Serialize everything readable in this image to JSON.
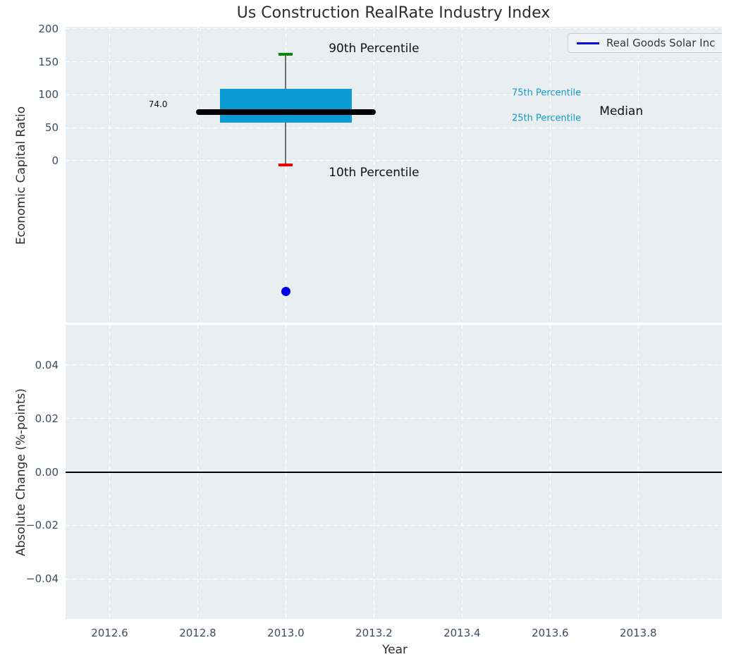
{
  "figure": {
    "title": "Us Construction RealRate Industry Index",
    "background_color": "#ffffff",
    "axes_background_color": "#e9eef0",
    "grid_color": "#ffffff",
    "tick_label_color": "#3c4c63",
    "legend": {
      "label": "Real Goods Solar Inc",
      "line_color": "#0000dd",
      "position": "upper right"
    }
  },
  "chart_data": [
    {
      "type": "boxplot",
      "title": "Us Construction RealRate Industry Index",
      "ylabel": "Economic Capital Ratio",
      "xlabel": "",
      "xlim": [
        2012.5,
        2013.99
      ],
      "ylim": [
        -246,
        203
      ],
      "xticks": [
        2012.6,
        2012.8,
        2013.0,
        2013.2,
        2013.4,
        2013.6,
        2013.8
      ],
      "xticklabels": [
        "2012.6",
        "2012.8",
        "2013.0",
        "2013.2",
        "2013.4",
        "2013.6",
        "2013.8"
      ],
      "yticks": [
        0,
        50,
        100,
        150,
        200
      ],
      "yticklabels": [
        "0",
        "50",
        "100",
        "150",
        "200"
      ],
      "grid": true,
      "box": {
        "x": 2013.0,
        "p10": -7,
        "p25": 57.5,
        "median": 74.0,
        "p75": 108.5,
        "p90": 161,
        "box_half_width": 0.15,
        "median_half_width": 0.204,
        "cap_half_width": 0.016,
        "box_color": "#0a9cd2",
        "median_color": "#000000",
        "p90_cap_color": "#078a07",
        "p10_cap_color": "#ee0000"
      },
      "company_point": {
        "name": "Real Goods Solar Inc",
        "x": 2013.0,
        "y": -198,
        "color": "#0000e6"
      },
      "annotations": [
        {
          "text": "90th Percentile",
          "x": 2013.2,
          "y": 170,
          "color": "#111111",
          "size": 17,
          "align": "center"
        },
        {
          "text": "10th Percentile",
          "x": 2013.2,
          "y": -18,
          "color": "#111111",
          "size": 17,
          "align": "center"
        },
        {
          "text": "75th Percentile",
          "x": 2013.513,
          "y": 102,
          "color": "#189cd0",
          "size": 13,
          "align": "left"
        },
        {
          "text": "25th Percentile",
          "x": 2013.513,
          "y": 64.5,
          "color": "#189cd0",
          "size": 13,
          "align": "left"
        },
        {
          "text": "Median",
          "x": 2013.712,
          "y": 74.5,
          "color": "#111111",
          "size": 17,
          "align": "left"
        },
        {
          "text": "74.0",
          "x": 2012.71,
          "y": 85,
          "color": "#111111",
          "size": 12,
          "align": "center"
        }
      ],
      "legend_entries": [
        "Real Goods Solar Inc"
      ]
    },
    {
      "type": "line",
      "ylabel": "Absolute Change (%-points)",
      "xlabel": "Year",
      "xlim": [
        2012.5,
        2013.99
      ],
      "ylim": [
        -0.055,
        0.055
      ],
      "xticks": [
        2012.6,
        2012.8,
        2013.0,
        2013.2,
        2013.4,
        2013.6,
        2013.8
      ],
      "xticklabels": [
        "2012.6",
        "2012.8",
        "2013.0",
        "2013.2",
        "2013.4",
        "2013.6",
        "2013.8"
      ],
      "yticks": [
        0.04,
        0.02,
        0.0,
        -0.02,
        -0.04
      ],
      "yticklabels": [
        "0.04",
        "0.02",
        "0.00",
        "−0.02",
        "−0.04"
      ],
      "grid": true,
      "zero_line": 0.0,
      "series": []
    }
  ]
}
